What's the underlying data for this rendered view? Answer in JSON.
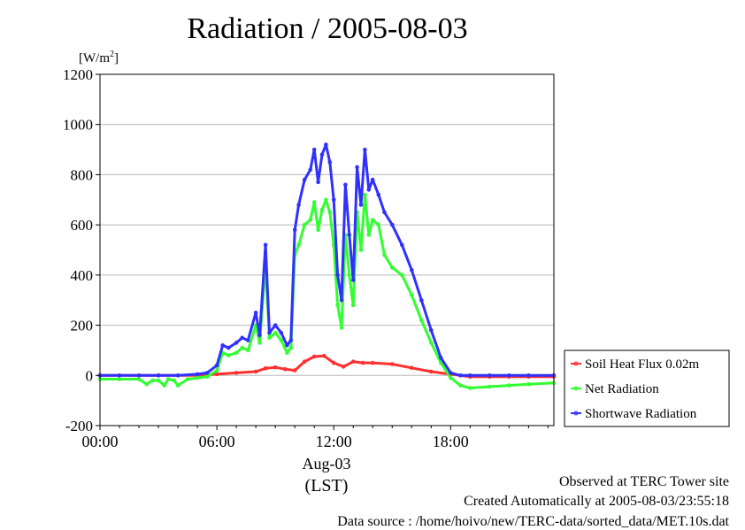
{
  "chart_data": {
    "type": "line",
    "title": "Radiation / 2005-08-03",
    "unit_label": "[W/m²]",
    "unit_base": "[W/m",
    "unit_sup": "2",
    "unit_close": "]",
    "xlabel_date": "Aug-03",
    "xlabel_tz": "(LST)",
    "x_ticks": [
      "00:00",
      "06:00",
      "12:00",
      "18:00"
    ],
    "x_tick_hours": [
      0,
      6,
      12,
      18
    ],
    "x_range_hours": [
      0,
      23.3
    ],
    "y_ticks": [
      -200,
      0,
      200,
      400,
      600,
      800,
      1000,
      1200
    ],
    "ylim": [
      -200,
      1200
    ],
    "grid": true,
    "legend_position": "right",
    "series": [
      {
        "name": "Soil Heat Flux 0.02m",
        "color": "#ff3030",
        "x": [
          0,
          3,
          5,
          6,
          7,
          8,
          8.5,
          9,
          9.5,
          10,
          10.5,
          11,
          11.5,
          12,
          12.5,
          13,
          13.5,
          14,
          15,
          16,
          17,
          18,
          19,
          20,
          21,
          22,
          23.3
        ],
        "values": [
          0,
          0,
          0,
          5,
          10,
          15,
          28,
          32,
          25,
          20,
          55,
          75,
          78,
          50,
          35,
          55,
          50,
          50,
          45,
          30,
          15,
          5,
          -5,
          -5,
          -5,
          -5,
          -5
        ]
      },
      {
        "name": "Net Radiation",
        "color": "#30ff30",
        "x": [
          0,
          1,
          2,
          2.4,
          2.7,
          3,
          3.3,
          3.5,
          3.8,
          4,
          4.5,
          5,
          5.5,
          6,
          6.3,
          6.6,
          7,
          7.3,
          7.6,
          8,
          8.2,
          8.5,
          8.7,
          9,
          9.3,
          9.6,
          9.8,
          10,
          10.2,
          10.5,
          10.8,
          11,
          11.2,
          11.4,
          11.6,
          11.8,
          12,
          12.2,
          12.4,
          12.6,
          12.8,
          13,
          13.2,
          13.4,
          13.6,
          13.8,
          14,
          14.3,
          14.6,
          15,
          15.5,
          16,
          16.5,
          17,
          17.5,
          18,
          18.5,
          19,
          20,
          21,
          22,
          23.3
        ],
        "values": [
          -15,
          -15,
          -15,
          -35,
          -20,
          -20,
          -40,
          -15,
          -20,
          -40,
          -15,
          -10,
          -5,
          20,
          90,
          80,
          90,
          110,
          100,
          200,
          130,
          440,
          150,
          170,
          140,
          90,
          110,
          480,
          520,
          600,
          620,
          690,
          580,
          660,
          700,
          650,
          520,
          280,
          190,
          560,
          400,
          280,
          650,
          500,
          720,
          560,
          620,
          600,
          480,
          430,
          400,
          320,
          220,
          130,
          50,
          -10,
          -40,
          -50,
          -45,
          -40,
          -35,
          -30
        ]
      },
      {
        "name": "Shortwave Radiation",
        "color": "#3030ff",
        "x": [
          0,
          1,
          2,
          3,
          4,
          5,
          5.5,
          6,
          6.3,
          6.6,
          7,
          7.3,
          7.6,
          8,
          8.2,
          8.5,
          8.7,
          9,
          9.3,
          9.6,
          9.8,
          10,
          10.2,
          10.5,
          10.8,
          11,
          11.2,
          11.4,
          11.6,
          11.8,
          12,
          12.2,
          12.4,
          12.6,
          12.8,
          13,
          13.2,
          13.4,
          13.6,
          13.8,
          14,
          14.3,
          14.6,
          15,
          15.5,
          16,
          16.5,
          17,
          17.5,
          18,
          18.5,
          19,
          20,
          21,
          22,
          23.3
        ],
        "values": [
          0,
          0,
          0,
          0,
          0,
          5,
          10,
          40,
          120,
          110,
          130,
          150,
          140,
          250,
          160,
          520,
          170,
          200,
          170,
          120,
          140,
          580,
          680,
          780,
          820,
          900,
          770,
          880,
          920,
          850,
          700,
          400,
          300,
          760,
          560,
          380,
          830,
          680,
          900,
          740,
          780,
          720,
          650,
          600,
          520,
          420,
          300,
          180,
          70,
          10,
          0,
          0,
          0,
          0,
          0,
          0
        ]
      }
    ]
  },
  "footer": {
    "observed": "Observed at TERC Tower site",
    "created": "Created Automatically at 2005-08-03/23:55:18",
    "source": "Data source : /home/hoivo/new/TERC-data/sorted_data/MET.10s.dat"
  }
}
